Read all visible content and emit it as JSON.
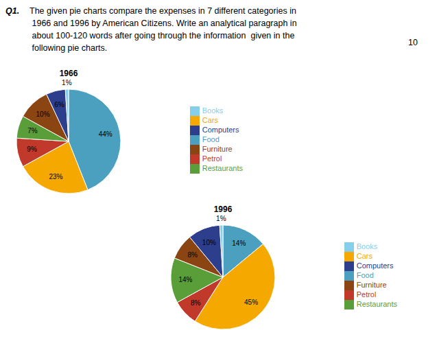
{
  "chart_data": [
    {
      "type": "pie",
      "title": "1966",
      "categories": [
        "Food",
        "Cars",
        "Petrol",
        "Restaurants",
        "Furniture",
        "Computers",
        "Books"
      ],
      "values": [
        44,
        23,
        9,
        7,
        10,
        6,
        1
      ],
      "value_labels": [
        "44%",
        "23%",
        "9%",
        "7%",
        "10%",
        "6%",
        "1%"
      ],
      "colors": [
        "#4B9FBF",
        "#F5A800",
        "#C0392B",
        "#5A9E3A",
        "#8B4513",
        "#2C3E8C",
        "#87CEEB"
      ],
      "data_labels": true,
      "legend": "right",
      "annotations": [
        "Q1.",
        "The given pie charts compare the expenses in 7 different categories in\n 1966 and 1996 by American Citizens. Write an analytical paragraph in\n about 100-120 words after going through the information  given in the\n following pie charts.",
        "10"
      ]
    },
    {
      "type": "pie",
      "title": "1996",
      "categories": [
        "Food",
        "Cars",
        "Petrol",
        "Restaurants",
        "Furniture",
        "Computers",
        "Books"
      ],
      "values": [
        14,
        45,
        8,
        14,
        8,
        10,
        1
      ],
      "value_labels": [
        "14%",
        "45%",
        "8%",
        "14%",
        "8%",
        "10%",
        "1%"
      ],
      "colors": [
        "#4B9FBF",
        "#F5A800",
        "#C0392B",
        "#5A9E3A",
        "#8B4513",
        "#2C3E8C",
        "#87CEEB"
      ],
      "data_labels": true,
      "legend": "right"
    }
  ]
}
